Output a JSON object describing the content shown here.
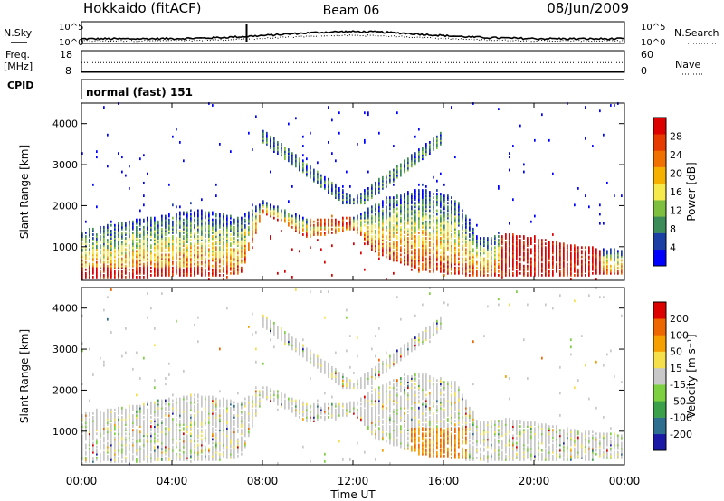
{
  "header": {
    "station": "Hokkaido (fitACF)",
    "beam": "Beam 06",
    "date": "08/Jun/2009"
  },
  "chart_data": [
    {
      "type": "line",
      "name": "noise",
      "left_label": "N.Sky",
      "right_label": "N.Search",
      "left_ticks": [
        "10^5",
        "10^0"
      ],
      "right_ticks": [
        "10^5",
        "10^0"
      ],
      "scale": "log",
      "ylim": [
        1,
        100000
      ]
    },
    {
      "type": "line",
      "name": "frequency",
      "left_label": "Freq.",
      "left_unit": "[MHz]",
      "right_label": "Nave",
      "left_ticks": [
        "18",
        "8"
      ],
      "right_ticks": [
        "60",
        "0"
      ],
      "ylim": [
        8,
        18
      ],
      "nave_ylim": [
        0,
        60
      ],
      "freq_value": 12.5,
      "nave_value": 0
    },
    {
      "type": "text",
      "name": "cpid",
      "label": "CPID",
      "value": "normal (fast) 151"
    },
    {
      "type": "heatmap",
      "name": "power",
      "ylabel": "Slant Range [km]",
      "yticks": [
        "1000",
        "2000",
        "3000",
        "4000"
      ],
      "ylim": [
        180,
        4500
      ],
      "colorbar_label": "Power [dB]",
      "colorbar_ticks": [
        "28",
        "24",
        "20",
        "16",
        "12",
        "8",
        "4"
      ],
      "colors": [
        "#0000ff",
        "#1c3fa6",
        "#3c8c5a",
        "#7fbf3f",
        "#f5e94c",
        "#f5b000",
        "#f07000",
        "#e63a00",
        "#dd0000"
      ]
    },
    {
      "type": "heatmap",
      "name": "velocity",
      "ylabel": "Slant Range [km]",
      "yticks": [
        "1000",
        "2000",
        "3000",
        "4000"
      ],
      "ylim": [
        180,
        4500
      ],
      "colorbar_label": "Velocity [m s⁻¹]",
      "colorbar_ticks": [
        "200",
        "100",
        "50",
        "15",
        "-15",
        "-50",
        "-100",
        "-200"
      ],
      "colors": [
        "#1a1aa6",
        "#2e6e8f",
        "#3aa04a",
        "#7dd040",
        "#c8c8c8",
        "#f5e04c",
        "#f5a000",
        "#ee6600",
        "#dd0000"
      ]
    }
  ],
  "xaxis": {
    "ticks": [
      "00:00",
      "04:00",
      "08:00",
      "12:00",
      "16:00",
      "20:00",
      "00:00"
    ],
    "tick_hours": [
      0,
      4,
      8,
      12,
      16,
      20,
      24
    ],
    "label": "Time UT",
    "xlim": [
      0,
      24
    ]
  }
}
